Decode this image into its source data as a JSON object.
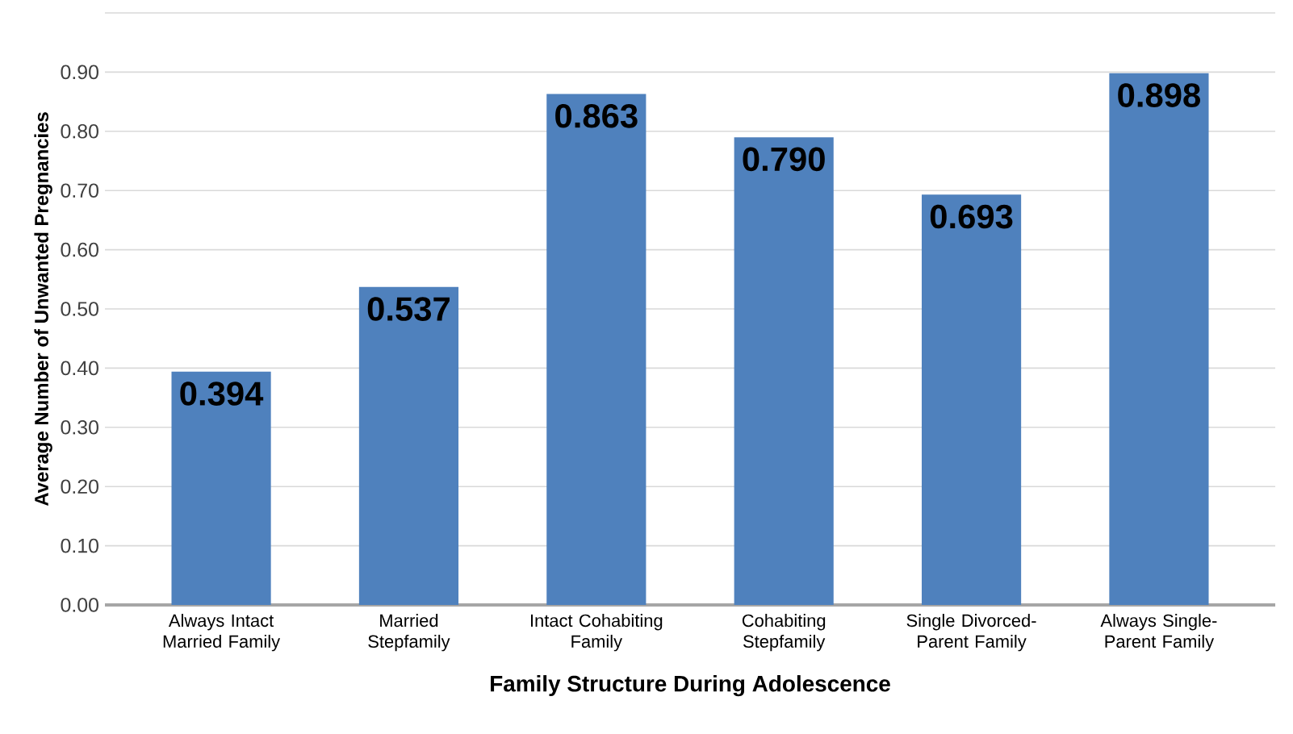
{
  "chart_data": {
    "type": "bar",
    "xlabel": "Family Structure During Adolescence",
    "ylabel": "Average Number of Unwanted Pregnancies",
    "categories": [
      "Always Intact Married Family",
      "Married Stepfamily",
      "Intact Cohabiting Family",
      "Cohabiting Stepfamily",
      "Single Divorced-Parent Family",
      "Always Single-Parent Family"
    ],
    "values": [
      0.394,
      0.537,
      0.863,
      0.79,
      0.693,
      0.898
    ],
    "value_labels": [
      "0.394",
      "0.537",
      "0.863",
      "0.790",
      "0.693",
      "0.898"
    ],
    "color": "#4f81bd",
    "ylim": [
      0,
      1.0
    ],
    "yticks": [
      {
        "value": 0,
        "label": "0.00"
      },
      {
        "value": 0.1,
        "label": "0.10"
      },
      {
        "value": 0.2,
        "label": "0.20"
      },
      {
        "value": 0.3,
        "label": "0.30"
      },
      {
        "value": 0.4,
        "label": "0.40"
      },
      {
        "value": 0.5,
        "label": "0.50"
      },
      {
        "value": 0.6,
        "label": "0.60"
      },
      {
        "value": 0.7,
        "label": "0.70"
      },
      {
        "value": 0.8,
        "label": "0.80"
      },
      {
        "value": 0.9,
        "label": "0.90"
      },
      {
        "value": 1.0,
        "label": null
      }
    ],
    "grid": "y"
  }
}
